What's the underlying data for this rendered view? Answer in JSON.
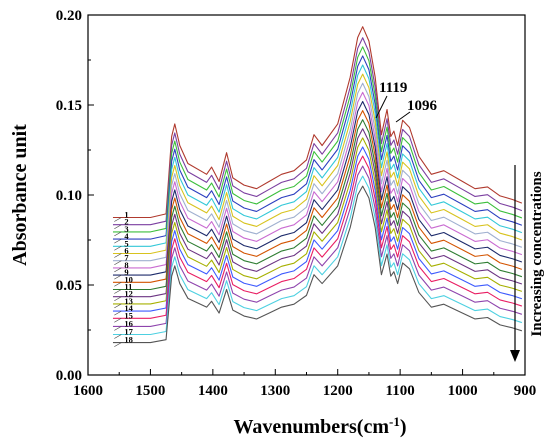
{
  "chart_data": {
    "type": "line",
    "xlabel": "Wavenumbers(cm",
    "xlabel_sup": "-1",
    "xlabel_tail": ")",
    "ylabel": "Absorbance unit",
    "xlim": [
      1600,
      900
    ],
    "ylim": [
      0.0,
      0.2
    ],
    "x_reversed": true,
    "xticks": [
      "1600",
      "1500",
      "1400",
      "1300",
      "1200",
      "1100",
      "1000",
      "900"
    ],
    "yticks": [
      "0.00",
      "0.05",
      "0.10",
      "0.15",
      "0.20"
    ],
    "grid": false,
    "x": [
      1560,
      1500,
      1475,
      1466,
      1461,
      1453,
      1440,
      1410,
      1402,
      1390,
      1378,
      1368,
      1350,
      1330,
      1310,
      1290,
      1270,
      1250,
      1238,
      1225,
      1200,
      1180,
      1168,
      1160,
      1150,
      1140,
      1130,
      1121,
      1115,
      1110,
      1104,
      1096,
      1085,
      1070,
      1050,
      1030,
      1000,
      980,
      960,
      940,
      920,
      905
    ],
    "base_profile": [
      0.0,
      0.0,
      0.002,
      0.045,
      0.052,
      0.04,
      0.03,
      0.024,
      0.028,
      0.02,
      0.036,
      0.022,
      0.018,
      0.016,
      0.02,
      0.024,
      0.026,
      0.032,
      0.046,
      0.04,
      0.052,
      0.078,
      0.1,
      0.106,
      0.098,
      0.078,
      0.046,
      0.06,
      0.045,
      0.048,
      0.04,
      0.054,
      0.05,
      0.034,
      0.024,
      0.026,
      0.02,
      0.016,
      0.017,
      0.012,
      0.01,
      0.008
    ],
    "series": [
      {
        "name": "1",
        "offset": 0.0875,
        "scale": 1.0,
        "color": "#b03a2e"
      },
      {
        "name": "2",
        "offset": 0.0835,
        "scale": 0.98,
        "color": "#7b3fa0"
      },
      {
        "name": "3",
        "offset": 0.0795,
        "scale": 0.97,
        "color": "#3cbf3c"
      },
      {
        "name": "4",
        "offset": 0.0755,
        "scale": 0.96,
        "color": "#2c3fbf"
      },
      {
        "name": "5",
        "offset": 0.0715,
        "scale": 0.95,
        "color": "#33c8d8"
      },
      {
        "name": "6",
        "offset": 0.0675,
        "scale": 0.94,
        "color": "#d8c31e"
      },
      {
        "name": "7",
        "offset": 0.0635,
        "scale": 0.93,
        "color": "#a0b0d0"
      },
      {
        "name": "8",
        "offset": 0.0595,
        "scale": 0.92,
        "color": "#c96bd1"
      },
      {
        "name": "9",
        "offset": 0.0555,
        "scale": 0.91,
        "color": "#1d2b6b"
      },
      {
        "name": "10",
        "offset": 0.0515,
        "scale": 0.9,
        "color": "#d35400"
      },
      {
        "name": "11",
        "offset": 0.0475,
        "scale": 0.89,
        "color": "#2e7d32"
      },
      {
        "name": "12",
        "offset": 0.0435,
        "scale": 0.88,
        "color": "#6c3483"
      },
      {
        "name": "13",
        "offset": 0.0395,
        "scale": 0.87,
        "color": "#a6b000"
      },
      {
        "name": "14",
        "offset": 0.0355,
        "scale": 0.86,
        "color": "#3d5afe"
      },
      {
        "name": "15",
        "offset": 0.0315,
        "scale": 0.85,
        "color": "#e91e63"
      },
      {
        "name": "16",
        "offset": 0.027,
        "scale": 0.84,
        "color": "#8e44ad"
      },
      {
        "name": "17",
        "offset": 0.0225,
        "scale": 0.83,
        "color": "#4dd0e1"
      },
      {
        "name": "18",
        "offset": 0.018,
        "scale": 0.82,
        "color": "#555555"
      }
    ],
    "annotations": [
      {
        "text": "1119",
        "x": 1119
      },
      {
        "text": "1096",
        "x": 1096
      }
    ],
    "side_note": "Increasing concentrations"
  }
}
